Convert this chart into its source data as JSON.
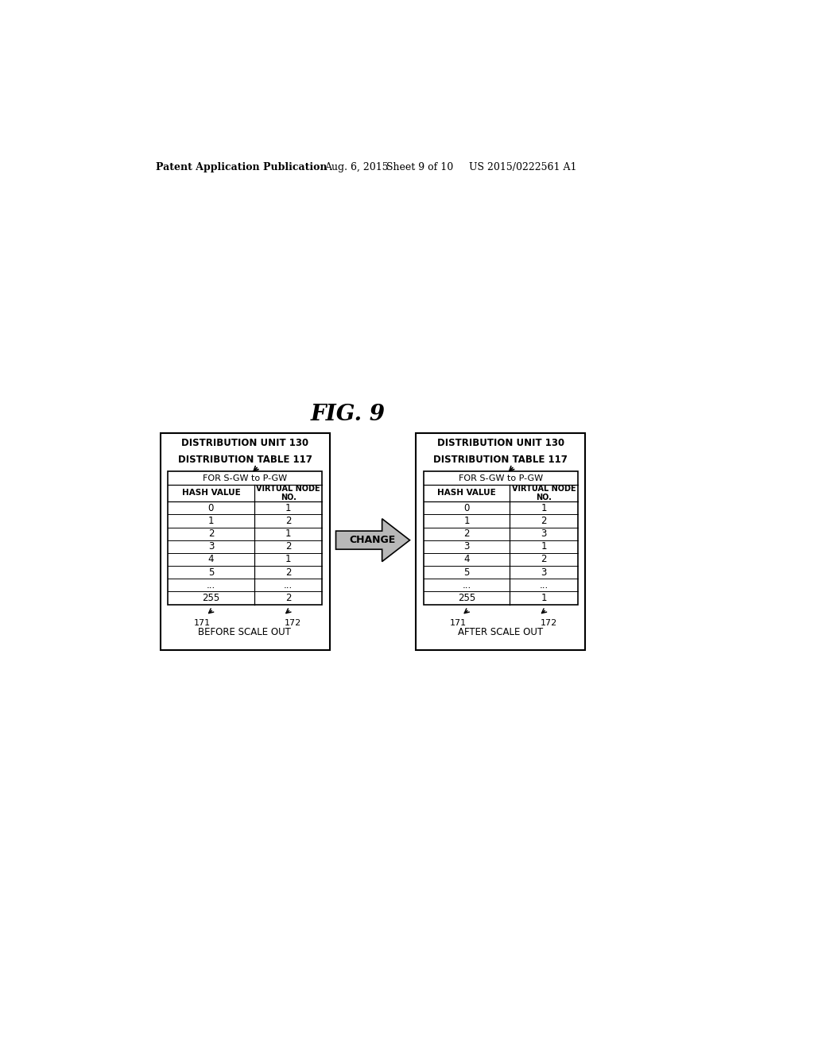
{
  "fig_title": "FIG. 9",
  "header_text1": "Patent Application Publication",
  "header_text2": "Aug. 6, 2015",
  "header_text3": "Sheet 9 of 10",
  "header_text4": "US 2015/0222561 A1",
  "left_table": {
    "outer_label": "DISTRIBUTION UNIT 130",
    "inner_label": "DISTRIBUTION TABLE 117",
    "subtitle": "FOR S-GW to P-GW",
    "col1_header": "HASH VALUE",
    "col2_header": "VIRTUAL NODE\nNO.",
    "rows": [
      [
        "0",
        "1"
      ],
      [
        "1",
        "2"
      ],
      [
        "2",
        "1"
      ],
      [
        "3",
        "2"
      ],
      [
        "4",
        "1"
      ],
      [
        "5",
        "2"
      ],
      [
        "...",
        "..."
      ],
      [
        "255",
        "2"
      ]
    ],
    "footnote_left": "171",
    "footnote_right": "172"
  },
  "right_table": {
    "outer_label": "DISTRIBUTION UNIT 130",
    "inner_label": "DISTRIBUTION TABLE 117",
    "subtitle": "FOR S-GW to P-GW",
    "col1_header": "HASH VALUE",
    "col2_header": "VIRTUAL NODE\nNO.",
    "rows": [
      [
        "0",
        "1"
      ],
      [
        "1",
        "2"
      ],
      [
        "2",
        "3"
      ],
      [
        "3",
        "1"
      ],
      [
        "4",
        "2"
      ],
      [
        "5",
        "3"
      ],
      [
        "...",
        "..."
      ],
      [
        "255",
        "1"
      ]
    ],
    "footnote_left": "171",
    "footnote_right": "172"
  },
  "arrow_label": "CHANGE",
  "left_caption": "BEFORE SCALE OUT",
  "right_caption": "AFTER SCALE OUT",
  "bg_color": "#ffffff",
  "text_color": "#000000"
}
